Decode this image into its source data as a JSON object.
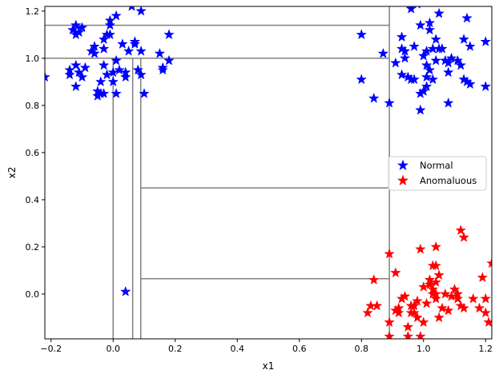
{
  "chart_data": {
    "type": "scatter",
    "title": "",
    "xlabel": "x1",
    "ylabel": "x2",
    "xlim": [
      -0.22,
      1.22
    ],
    "ylim": [
      -0.19,
      1.22
    ],
    "xticks": [
      -0.2,
      0.0,
      0.2,
      0.4,
      0.6,
      0.8,
      1.0,
      1.2
    ],
    "yticks": [
      0.0,
      0.2,
      0.4,
      0.6,
      0.8,
      1.0,
      1.2
    ],
    "xtick_labels": [
      "−0.2",
      "0.0",
      "0.2",
      "0.4",
      "0.6",
      "0.8",
      "1.0",
      "1.2"
    ],
    "ytick_labels": [
      "0.0",
      "0.2",
      "0.4",
      "0.6",
      "0.8",
      "1.0",
      "1.2"
    ],
    "grid": false,
    "legend_position": "center-right",
    "series": [
      {
        "name": "Normal",
        "color": "#0000ff",
        "marker": "star",
        "points": [
          [
            -0.22,
            0.92
          ],
          [
            -0.14,
            0.93
          ],
          [
            -0.14,
            0.95
          ],
          [
            -0.13,
            1.12
          ],
          [
            -0.12,
            1.14
          ],
          [
            -0.12,
            1.1
          ],
          [
            -0.11,
            1.11
          ],
          [
            -0.1,
            1.13
          ],
          [
            -0.12,
            0.97
          ],
          [
            -0.12,
            0.88
          ],
          [
            -0.11,
            0.94
          ],
          [
            -0.1,
            0.92
          ],
          [
            -0.09,
            0.96
          ],
          [
            -0.07,
            1.03
          ],
          [
            -0.06,
            1.05
          ],
          [
            -0.06,
            1.02
          ],
          [
            -0.05,
            0.84
          ],
          [
            -0.05,
            0.86
          ],
          [
            -0.04,
            0.9
          ],
          [
            -0.04,
            0.85
          ],
          [
            -0.03,
            0.85
          ],
          [
            -0.03,
            1.04
          ],
          [
            -0.03,
            1.08
          ],
          [
            -0.03,
            0.97
          ],
          [
            -0.02,
            0.93
          ],
          [
            -0.02,
            1.1
          ],
          [
            -0.01,
            1.16
          ],
          [
            -0.01,
            1.14
          ],
          [
            -0.01,
            1.1
          ],
          [
            0.0,
            0.9
          ],
          [
            0.0,
            0.94
          ],
          [
            0.01,
            1.18
          ],
          [
            0.01,
            0.85
          ],
          [
            0.01,
            0.99
          ],
          [
            0.02,
            0.95
          ],
          [
            0.03,
            1.06
          ],
          [
            0.04,
            0.92
          ],
          [
            0.04,
            0.94
          ],
          [
            0.05,
            1.03
          ],
          [
            0.06,
            1.22
          ],
          [
            0.07,
            1.07
          ],
          [
            0.07,
            1.06
          ],
          [
            0.08,
            0.95
          ],
          [
            0.09,
            1.2
          ],
          [
            0.09,
            1.03
          ],
          [
            0.09,
            0.93
          ],
          [
            0.1,
            0.85
          ],
          [
            0.15,
            1.02
          ],
          [
            0.16,
            0.95
          ],
          [
            0.16,
            0.96
          ],
          [
            0.18,
            0.99
          ],
          [
            0.18,
            1.1
          ],
          [
            0.04,
            0.01
          ],
          [
            0.8,
            1.1
          ],
          [
            0.8,
            0.91
          ],
          [
            0.84,
            0.83
          ],
          [
            0.87,
            1.02
          ],
          [
            0.89,
            0.81
          ],
          [
            0.91,
            0.98
          ],
          [
            0.93,
            1.04
          ],
          [
            0.93,
            0.93
          ],
          [
            0.93,
            1.09
          ],
          [
            0.94,
            1.0
          ],
          [
            0.94,
            1.03
          ],
          [
            0.95,
            0.92
          ],
          [
            0.96,
            0.91
          ],
          [
            0.96,
            1.21
          ],
          [
            0.97,
            1.05
          ],
          [
            0.97,
            0.91
          ],
          [
            0.98,
            1.23
          ],
          [
            0.99,
            0.85
          ],
          [
            0.99,
            0.78
          ],
          [
            0.99,
            1.14
          ],
          [
            1.0,
            1.01
          ],
          [
            1.0,
            0.86
          ],
          [
            1.01,
            0.92
          ],
          [
            1.01,
            0.97
          ],
          [
            1.01,
            1.03
          ],
          [
            1.01,
            0.88
          ],
          [
            1.02,
            0.95
          ],
          [
            1.02,
            1.12
          ],
          [
            1.02,
            1.15
          ],
          [
            1.03,
            0.91
          ],
          [
            1.03,
            1.04
          ],
          [
            1.04,
            1.08
          ],
          [
            1.04,
            0.99
          ],
          [
            1.05,
            1.19
          ],
          [
            1.05,
            1.04
          ],
          [
            1.06,
            1.04
          ],
          [
            1.07,
            0.99
          ],
          [
            1.08,
            0.81
          ],
          [
            1.08,
            0.98
          ],
          [
            1.08,
            0.94
          ],
          [
            1.09,
            1.0
          ],
          [
            1.11,
            0.99
          ],
          [
            1.12,
            0.97
          ],
          [
            1.13,
            1.08
          ],
          [
            1.13,
            0.91
          ],
          [
            1.14,
            1.17
          ],
          [
            1.14,
            0.9
          ],
          [
            1.15,
            1.05
          ],
          [
            1.15,
            0.89
          ],
          [
            1.2,
            1.07
          ],
          [
            1.2,
            0.88
          ]
        ]
      },
      {
        "name": "Anomaluous",
        "color": "#ff0000",
        "marker": "star",
        "points": [
          [
            0.82,
            -0.08
          ],
          [
            0.83,
            -0.05
          ],
          [
            0.84,
            0.06
          ],
          [
            0.85,
            -0.05
          ],
          [
            0.89,
            0.17
          ],
          [
            0.89,
            -0.12
          ],
          [
            0.89,
            -0.18
          ],
          [
            0.91,
            -0.07
          ],
          [
            0.91,
            0.09
          ],
          [
            0.92,
            -0.08
          ],
          [
            0.92,
            -0.06
          ],
          [
            0.93,
            -0.02
          ],
          [
            0.94,
            -0.01
          ],
          [
            0.95,
            -0.14
          ],
          [
            0.95,
            -0.18
          ],
          [
            0.96,
            -0.05
          ],
          [
            0.96,
            -0.08
          ],
          [
            0.97,
            -0.08
          ],
          [
            0.97,
            -0.05
          ],
          [
            0.98,
            -0.03
          ],
          [
            0.98,
            -0.1
          ],
          [
            0.99,
            0.19
          ],
          [
            0.99,
            -0.18
          ],
          [
            1.0,
            -0.12
          ],
          [
            1.0,
            0.03
          ],
          [
            1.01,
            -0.04
          ],
          [
            1.02,
            0.06
          ],
          [
            1.02,
            0.04
          ],
          [
            1.03,
            0.0
          ],
          [
            1.03,
            0.02
          ],
          [
            1.03,
            0.12
          ],
          [
            1.04,
            0.0
          ],
          [
            1.04,
            -0.02
          ],
          [
            1.04,
            0.05
          ],
          [
            1.04,
            0.2
          ],
          [
            1.04,
            0.12
          ],
          [
            1.05,
            0.08
          ],
          [
            1.05,
            -0.1
          ],
          [
            1.06,
            -0.06
          ],
          [
            1.07,
            0.0
          ],
          [
            1.08,
            -0.07
          ],
          [
            1.09,
            -0.01
          ],
          [
            1.1,
            0.02
          ],
          [
            1.11,
            0.0
          ],
          [
            1.11,
            -0.02
          ],
          [
            1.12,
            -0.05
          ],
          [
            1.12,
            0.27
          ],
          [
            1.13,
            -0.06
          ],
          [
            1.13,
            0.24
          ],
          [
            1.16,
            -0.02
          ],
          [
            1.18,
            -0.06
          ],
          [
            1.19,
            0.07
          ],
          [
            1.2,
            -0.02
          ],
          [
            1.2,
            -0.08
          ],
          [
            1.21,
            -0.12
          ],
          [
            1.22,
            0.13
          ]
        ]
      }
    ],
    "split_lines": [
      {
        "orientation": "vertical",
        "x": 0.0,
        "y_from": -0.19,
        "y_to": 1.0
      },
      {
        "orientation": "vertical",
        "x": 0.063,
        "y_from": -0.19,
        "y_to": 1.0
      },
      {
        "orientation": "vertical",
        "x": 0.089,
        "y_from": -0.19,
        "y_to": 1.0
      },
      {
        "orientation": "vertical",
        "x": 0.89,
        "y_from": -0.19,
        "y_to": 1.23
      },
      {
        "orientation": "horizontal",
        "y": 1.14,
        "x_from": -0.22,
        "x_to": 0.89
      },
      {
        "orientation": "horizontal",
        "y": 1.0,
        "x_from": -0.22,
        "x_to": 0.89
      },
      {
        "orientation": "horizontal",
        "y": 0.45,
        "x_from": 0.089,
        "x_to": 0.89
      },
      {
        "orientation": "horizontal",
        "y": 0.065,
        "x_from": 0.089,
        "x_to": 0.89
      }
    ],
    "split_line_color": "#808080"
  }
}
